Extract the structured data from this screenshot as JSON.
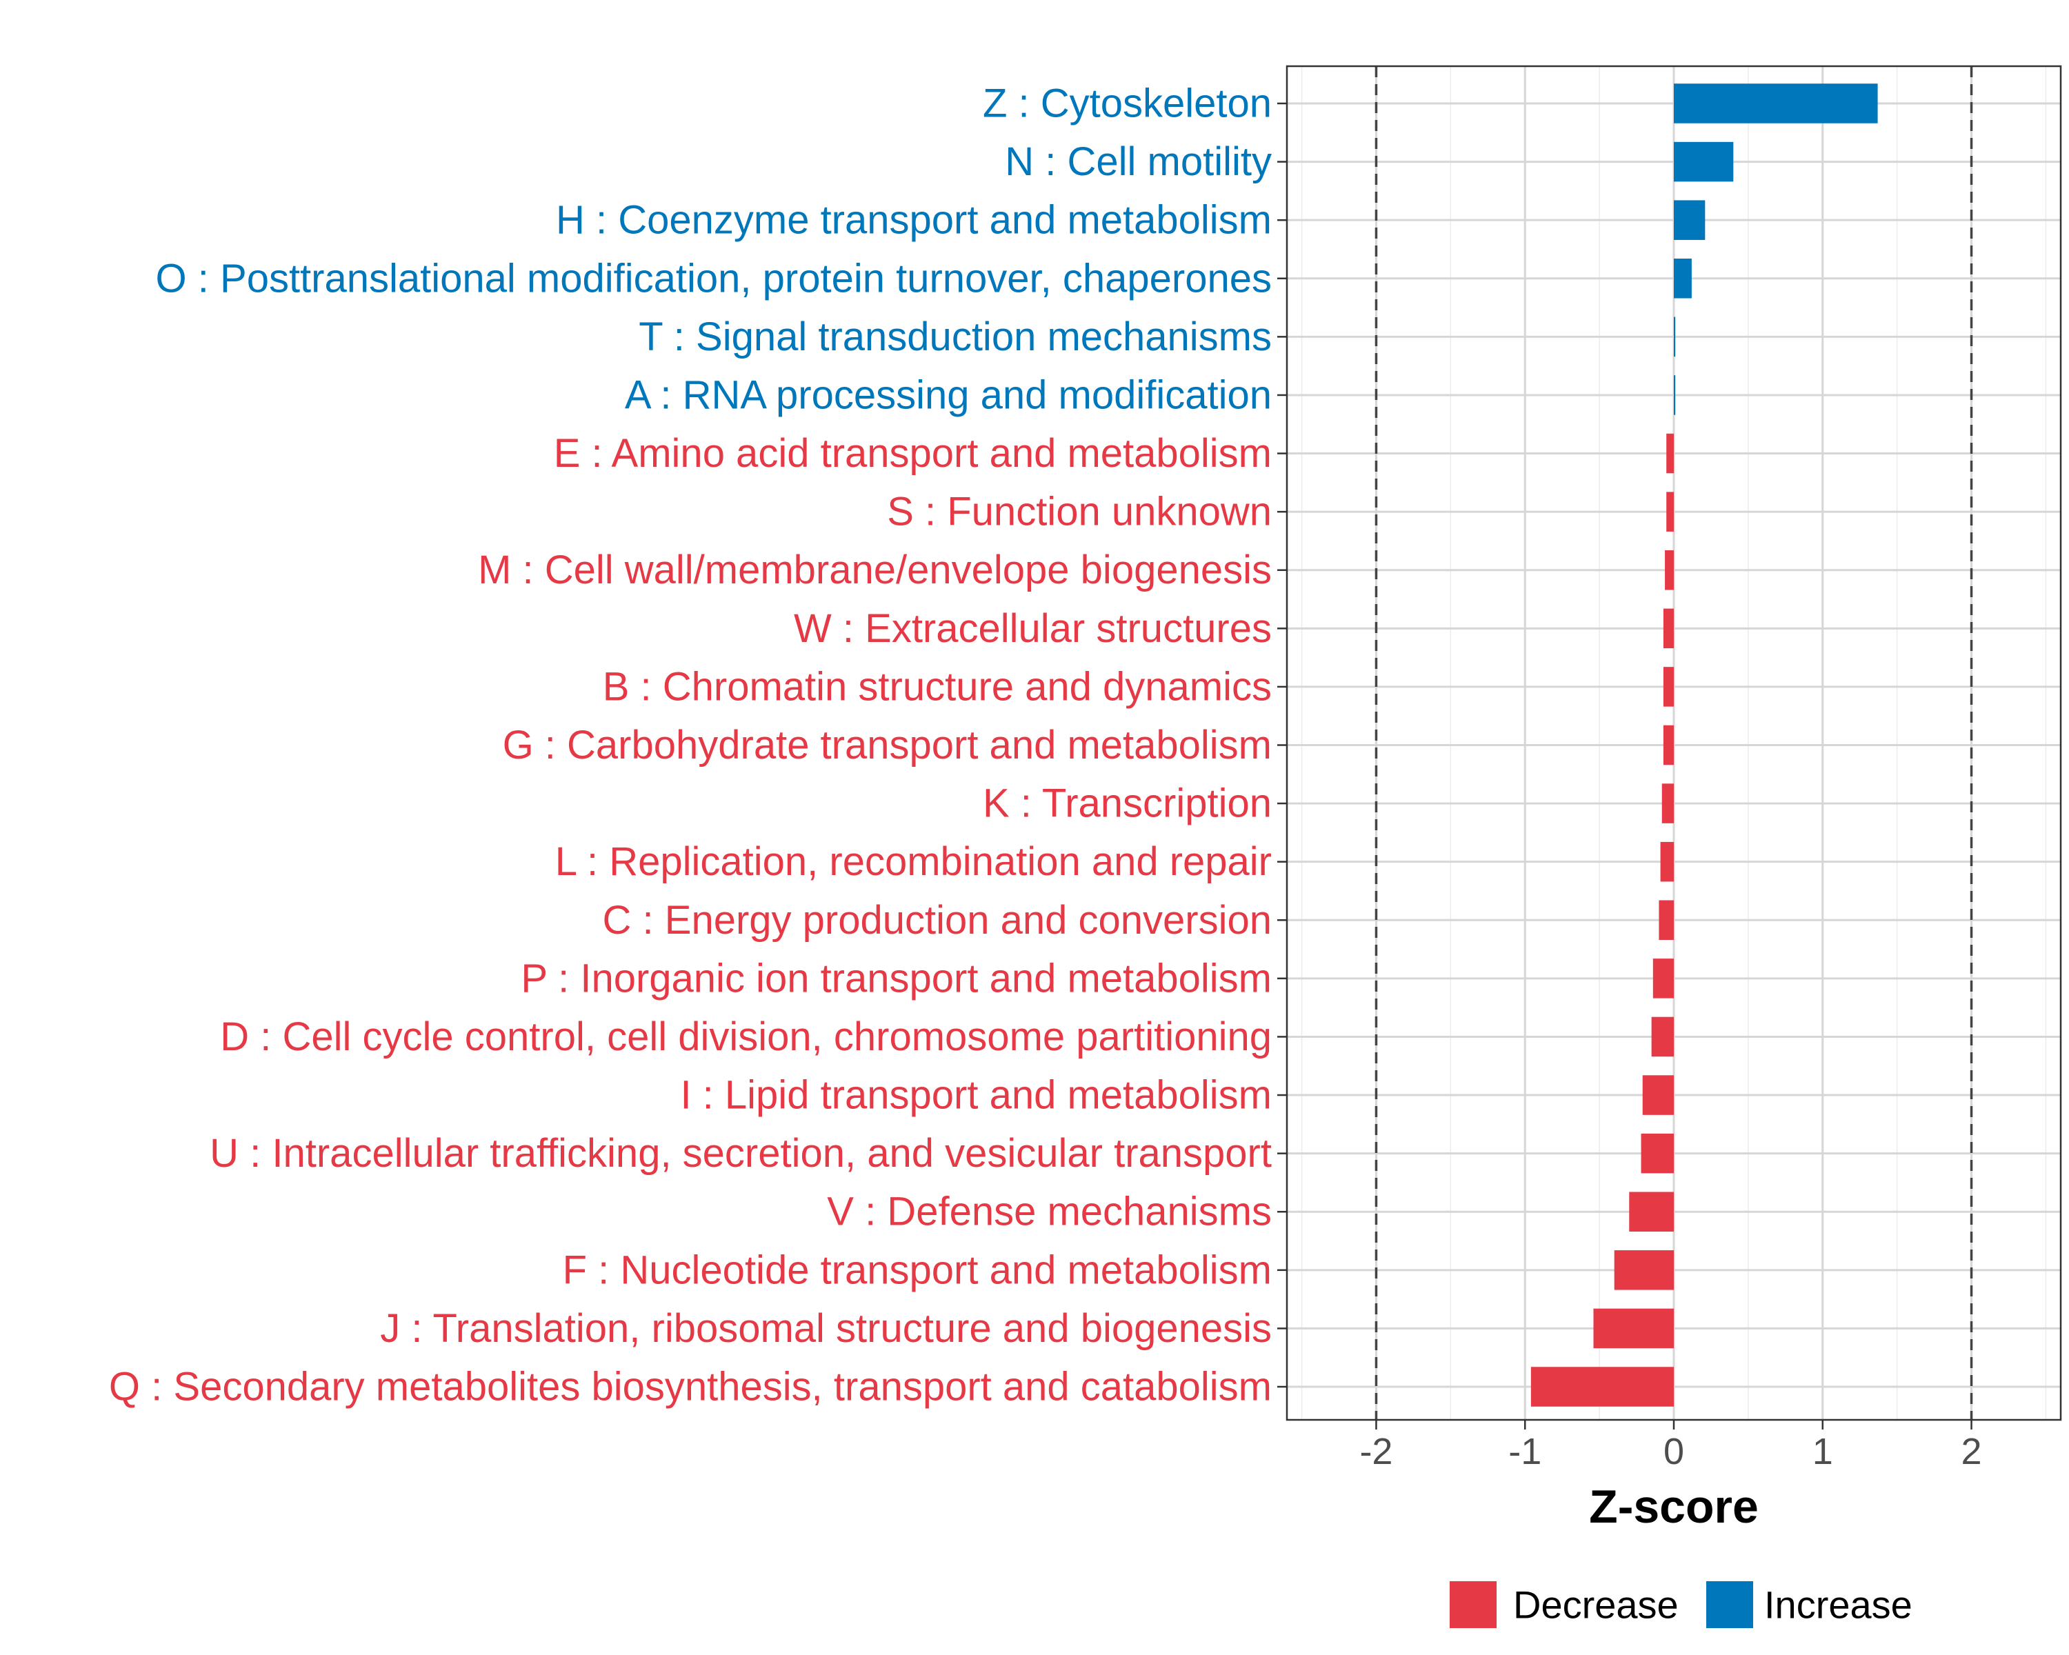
{
  "chart_data": {
    "type": "bar",
    "orientation": "horizontal",
    "xlabel": "Z-score",
    "ylabel": "",
    "xlim": [
      -2.6,
      2.6
    ],
    "xticks": [
      -2,
      -1,
      0,
      1,
      2
    ],
    "tick_labels": [
      "-2",
      "-1",
      "0",
      "1",
      "2"
    ],
    "reference_lines": [
      -2,
      2
    ],
    "grid": true,
    "legend_position": "bottom",
    "colors": {
      "Decrease": "#e63946",
      "Increase": "#0077bb"
    },
    "legend": [
      "Decrease",
      "Increase"
    ],
    "categories": [
      "Z : Cytoskeleton",
      "N : Cell motility",
      "H : Coenzyme transport and metabolism",
      "O : Posttranslational modification, protein turnover, chaperones",
      "T : Signal transduction mechanisms",
      "A : RNA processing and modification",
      "E : Amino acid transport and metabolism",
      "S : Function unknown",
      "M : Cell wall/membrane/envelope biogenesis",
      "W : Extracellular structures",
      "B : Chromatin structure and dynamics",
      "G : Carbohydrate transport and metabolism",
      "K : Transcription",
      "L : Replication, recombination and repair",
      "C : Energy production and conversion",
      "P : Inorganic ion transport and metabolism",
      "D : Cell cycle control, cell division, chromosome partitioning",
      "I : Lipid transport and metabolism",
      "U : Intracellular trafficking, secretion, and vesicular transport",
      "V : Defense mechanisms",
      "F : Nucleotide transport and metabolism",
      "J : Translation, ribosomal structure and biogenesis",
      "Q : Secondary metabolites biosynthesis, transport and catabolism"
    ],
    "values": [
      1.37,
      0.4,
      0.21,
      0.12,
      0.01,
      0.01,
      -0.05,
      -0.05,
      -0.06,
      -0.07,
      -0.07,
      -0.07,
      -0.08,
      -0.09,
      -0.1,
      -0.14,
      -0.15,
      -0.21,
      -0.22,
      -0.3,
      -0.4,
      -0.54,
      -0.96
    ],
    "direction": [
      "Increase",
      "Increase",
      "Increase",
      "Increase",
      "Increase",
      "Increase",
      "Decrease",
      "Decrease",
      "Decrease",
      "Decrease",
      "Decrease",
      "Decrease",
      "Decrease",
      "Decrease",
      "Decrease",
      "Decrease",
      "Decrease",
      "Decrease",
      "Decrease",
      "Decrease",
      "Decrease",
      "Decrease",
      "Decrease"
    ]
  }
}
